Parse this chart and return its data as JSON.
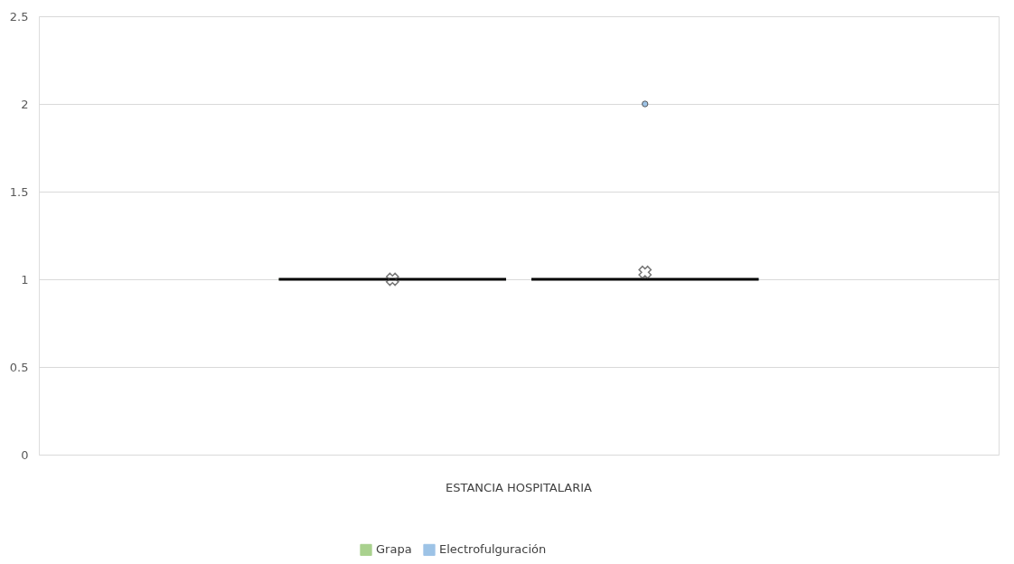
{
  "chart_data": {
    "type": "box",
    "categories": [
      "ESTANCIA HOSPITALARIA"
    ],
    "series": [
      {
        "name": "Grapa",
        "color": "#a9d18e",
        "boxes": [
          {
            "low": 1,
            "q1": 1,
            "median": 1,
            "q3": 1,
            "high": 1,
            "mean": 1
          }
        ]
      },
      {
        "name": "Electrofulguración",
        "color": "#9dc3e6",
        "boxes": [
          {
            "low": 1,
            "q1": 1,
            "median": 1,
            "q3": 1,
            "high": 1,
            "mean": 1.04,
            "outliers": [
              2
            ]
          }
        ]
      }
    ],
    "ylim": [
      0,
      2.5
    ],
    "yticks": [
      0,
      0.5,
      1,
      1.5,
      2,
      2.5
    ],
    "grid": "y",
    "legend": "bottom"
  }
}
